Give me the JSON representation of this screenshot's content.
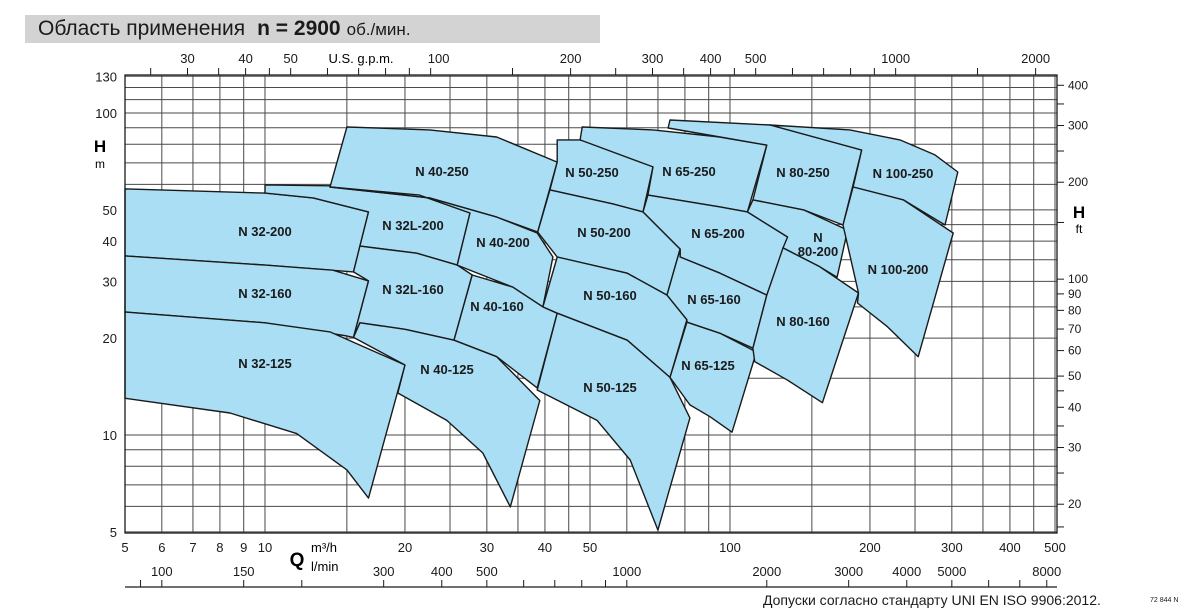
{
  "header": {
    "title": "Область применения",
    "speed": "n = 2900",
    "speed_unit": "об./мин."
  },
  "footer": {
    "note": "Допуски согласно стандарту UNI EN ISO 9906:2012.",
    "code": "72 844 N"
  },
  "colors": {
    "region_fill": "#a9def4",
    "outline": "#1a1a1a",
    "grid": "#4a4a4a",
    "title_bar": "#d3d3d3"
  },
  "chart_data": {
    "type": "area",
    "scale": "log-log",
    "grid": true,
    "xlabel": "Q",
    "x_unit": "m³/h",
    "x_unit_secondary": "l/min",
    "x_unit_top": "U.S. g.p.m.",
    "ylabel": "H",
    "y_unit": "m",
    "y_unit_right": "ft",
    "xlim": [
      5,
      500
    ],
    "ylim": [
      5,
      130
    ],
    "x_ticks_m3h": [
      5,
      6,
      7,
      8,
      9,
      10,
      20,
      30,
      40,
      50,
      100,
      200,
      300,
      400,
      500
    ],
    "x_ticks_lmin": [
      100,
      150,
      300,
      400,
      500,
      1000,
      2000,
      3000,
      4000,
      5000,
      8000
    ],
    "x_ticks_gpm": [
      30,
      40,
      50,
      100,
      200,
      300,
      400,
      500,
      1000,
      2000
    ],
    "y_ticks_m": [
      5,
      10,
      20,
      30,
      40,
      50,
      100,
      130
    ],
    "y_ticks_ft": [
      20,
      30,
      40,
      50,
      60,
      70,
      80,
      90,
      100,
      200,
      300,
      400
    ],
    "regions": [
      {
        "label": "N 32-200",
        "points": [
          [
            5,
            58.1
          ],
          [
            10,
            56.4
          ],
          [
            12.7,
            54.5
          ],
          [
            16.7,
            49.3
          ],
          [
            15.5,
            32.1
          ],
          [
            10,
            33.7
          ],
          [
            5,
            36.0
          ]
        ]
      },
      {
        "label": "N 32-160",
        "points": [
          [
            5,
            36.0
          ],
          [
            10,
            33.7
          ],
          [
            14,
            32.5
          ],
          [
            16.7,
            30.1
          ],
          [
            15.5,
            20.1
          ],
          [
            15,
            20.3
          ],
          [
            10,
            22.3
          ],
          [
            5,
            24.1
          ]
        ]
      },
      {
        "label": "N 32-125",
        "points": [
          [
            5,
            24.1
          ],
          [
            10,
            22.3
          ],
          [
            13.8,
            20.9
          ],
          [
            20,
            16.5
          ],
          [
            16.7,
            6.37
          ],
          [
            15,
            7.79
          ],
          [
            11.7,
            10.1
          ],
          [
            8.41,
            11.7
          ],
          [
            5,
            13.0
          ]
        ]
      },
      {
        "label": "N 32L-200",
        "points": [
          [
            10,
            59.8
          ],
          [
            15.2,
            59.3
          ],
          [
            21.5,
            55.6
          ],
          [
            27.6,
            48.9
          ],
          [
            25.9,
            33.7
          ],
          [
            21.2,
            36.7
          ],
          [
            16,
            38.6
          ],
          [
            16.7,
            49.3
          ],
          [
            12.7,
            54.5
          ],
          [
            10,
            56.4
          ]
        ]
      },
      {
        "label": "N 32L-160",
        "points": [
          [
            16,
            38.6
          ],
          [
            21.2,
            36.7
          ],
          [
            25.9,
            33.7
          ],
          [
            27.9,
            31.4
          ],
          [
            25.5,
            19.7
          ],
          [
            20,
            21.3
          ],
          [
            16,
            22.3
          ],
          [
            15.5,
            20.1
          ],
          [
            16.7,
            30.1
          ],
          [
            15.5,
            32.1
          ]
        ]
      },
      {
        "label": "N 40-250",
        "points": [
          [
            15,
            90.5
          ],
          [
            22.6,
            88.6
          ],
          [
            31.5,
            84.2
          ],
          [
            42.5,
            70.4
          ],
          [
            38.6,
            42.7
          ],
          [
            31.5,
            47.5
          ],
          [
            22.6,
            54.5
          ],
          [
            13.8,
            58.9
          ]
        ]
      },
      {
        "label": "N 40-200",
        "points": [
          [
            13.8,
            58.9
          ],
          [
            22.6,
            54.5
          ],
          [
            31.5,
            47.5
          ],
          [
            38.5,
            42.4
          ],
          [
            41.6,
            35.7
          ],
          [
            39.6,
            25.0
          ],
          [
            34.1,
            28.8
          ],
          [
            25.9,
            33.7
          ],
          [
            27.6,
            48.9
          ],
          [
            21.5,
            55.6
          ]
        ]
      },
      {
        "label": "N 40-160",
        "points": [
          [
            27.9,
            31.4
          ],
          [
            34.1,
            28.8
          ],
          [
            39.6,
            25.0
          ],
          [
            42.5,
            23.9
          ],
          [
            38.5,
            14.0
          ],
          [
            31.5,
            17.5
          ],
          [
            25.5,
            19.7
          ]
        ]
      },
      {
        "label": "N 40-125",
        "points": [
          [
            16,
            22.3
          ],
          [
            20,
            21.3
          ],
          [
            25.5,
            19.7
          ],
          [
            31.5,
            17.5
          ],
          [
            39,
            12.8
          ],
          [
            33.7,
            5.98
          ],
          [
            29.4,
            8.79
          ],
          [
            24.6,
            11.1
          ],
          [
            19.3,
            13.5
          ],
          [
            20,
            16.5
          ],
          [
            15.5,
            20.1
          ]
        ]
      },
      {
        "label": "N 50-250",
        "points": [
          [
            42.5,
            82.5
          ],
          [
            47.6,
            82.5
          ],
          [
            58,
            76.7
          ],
          [
            68.3,
            68.0
          ],
          [
            65,
            49.3
          ],
          [
            56,
            52.2
          ],
          [
            41,
            57.7
          ],
          [
            42.5,
            70.4
          ]
        ]
      },
      {
        "label": "N 50-200",
        "points": [
          [
            41,
            57.7
          ],
          [
            56,
            52.2
          ],
          [
            65,
            49.3
          ],
          [
            78.1,
            37.8
          ],
          [
            73.2,
            27.2
          ],
          [
            60.1,
            31.8
          ],
          [
            42.5,
            35.7
          ],
          [
            38.6,
            42.7
          ]
        ]
      },
      {
        "label": "N 50-160",
        "points": [
          [
            42.5,
            35.7
          ],
          [
            60.1,
            31.8
          ],
          [
            73.2,
            27.2
          ],
          [
            80.8,
            22.8
          ],
          [
            74.3,
            15.1
          ],
          [
            60.1,
            19.7
          ],
          [
            42.5,
            23.9
          ],
          [
            39.6,
            25.0
          ]
        ]
      },
      {
        "label": "N 50-125",
        "points": [
          [
            42.5,
            23.9
          ],
          [
            60.1,
            19.7
          ],
          [
            74.3,
            15.1
          ],
          [
            82,
            11.3
          ],
          [
            70,
            5.07
          ],
          [
            61,
            8.36
          ],
          [
            51.8,
            11.1
          ],
          [
            38.5,
            13.8
          ]
        ]
      },
      {
        "label": "N 65-250",
        "points": [
          [
            48.1,
            90.5
          ],
          [
            68.3,
            88.6
          ],
          [
            95.2,
            84.2
          ],
          [
            120,
            79.5
          ],
          [
            109,
            49.3
          ],
          [
            95.2,
            51.1
          ],
          [
            66.6,
            55.6
          ],
          [
            68.3,
            68.0
          ],
          [
            47.6,
            82.5
          ]
        ]
      },
      {
        "label": "N 65-200",
        "points": [
          [
            66.6,
            55.6
          ],
          [
            95.2,
            51.1
          ],
          [
            109,
            49.3
          ],
          [
            133,
            41.2
          ],
          [
            120,
            27.2
          ],
          [
            95.2,
            31.8
          ],
          [
            78.1,
            35.7
          ],
          [
            78.1,
            37.8
          ],
          [
            65,
            49.3
          ]
        ]
      },
      {
        "label": "N 65-160",
        "points": [
          [
            78.1,
            35.7
          ],
          [
            95.2,
            31.8
          ],
          [
            120,
            27.2
          ],
          [
            112,
            18.6
          ],
          [
            95.2,
            20.7
          ],
          [
            80.8,
            22.4
          ],
          [
            80.8,
            22.8
          ],
          [
            73.2,
            27.2
          ],
          [
            78.1,
            37.8
          ]
        ]
      },
      {
        "label": "N 65-125",
        "points": [
          [
            80.8,
            22.4
          ],
          [
            95.2,
            20.7
          ],
          [
            114,
            18.1
          ],
          [
            101,
            10.2
          ],
          [
            90.6,
            11.4
          ],
          [
            82,
            12.4
          ],
          [
            74.3,
            15.1
          ]
        ]
      },
      {
        "label": "N 80-250",
        "points": [
          [
            74.3,
            95.1
          ],
          [
            122,
            91.8
          ],
          [
            144,
            88.6
          ],
          [
            192,
            76.7
          ],
          [
            175,
            44.9
          ],
          [
            144,
            50.0
          ],
          [
            112,
            53.7
          ],
          [
            120,
            79.5
          ],
          [
            95.2,
            84.2
          ],
          [
            73.6,
            89.8
          ]
        ]
      },
      {
        "label": "N 80-200",
        "points": [
          [
            109,
            49.3
          ],
          [
            112,
            53.7
          ],
          [
            144,
            50.0
          ],
          [
            179,
            43.3
          ],
          [
            170,
            30.9
          ],
          [
            156,
            33.3
          ],
          [
            130,
            38.1
          ],
          [
            133,
            41.2
          ]
        ]
      },
      {
        "label": "N 80-160",
        "points": [
          [
            120,
            27.2
          ],
          [
            130,
            38.1
          ],
          [
            156,
            33.3
          ],
          [
            189,
            27.6
          ],
          [
            158,
            12.6
          ],
          [
            133,
            14.8
          ],
          [
            113,
            16.9
          ],
          [
            112,
            18.6
          ]
        ]
      },
      {
        "label": "N 100-250",
        "points": [
          [
            122,
            91.8
          ],
          [
            181,
            88.6
          ],
          [
            232,
            82.5
          ],
          [
            276,
            74.1
          ],
          [
            309,
            65.6
          ],
          [
            290,
            44.9
          ],
          [
            236,
            53.7
          ],
          [
            184,
            58.9
          ],
          [
            192,
            76.7
          ]
        ]
      },
      {
        "label": "N 100-200",
        "points": [
          [
            184,
            58.9
          ],
          [
            236,
            53.7
          ],
          [
            302,
            42.4
          ],
          [
            254,
            17.5
          ],
          [
            218,
            21.7
          ],
          [
            188,
            25.7
          ],
          [
            189,
            27.6
          ],
          [
            175,
            44.9
          ]
        ]
      }
    ]
  }
}
